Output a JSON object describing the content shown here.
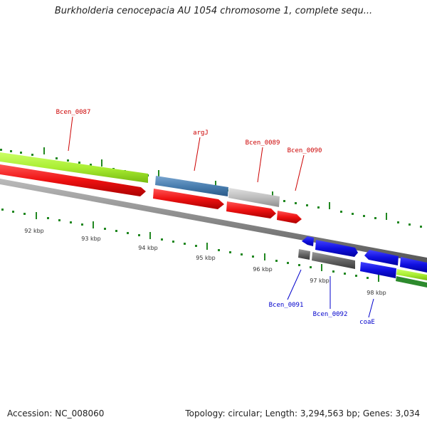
{
  "title": "Burkholderia cenocepacia AU 1054 chromosome 1, complete sequ...",
  "accession": "Accession: NC_008060",
  "topology": "Topology: circular; Length: 3,294,563 bp; Genes: 3,034",
  "colors": {
    "red_gene": "#ee1111",
    "blue_gene": "#1010e0",
    "lime_gene": "#aaee33",
    "steel_gene": "#4a7fb0",
    "gray_gene": "#bdbdbd",
    "dark_gene": "#666666",
    "axis": "#777777",
    "tick_green": "#228822",
    "label_red": "#cc0000",
    "label_blue": "#0000cc"
  },
  "kbp_labels": [
    "92 kbp",
    "93 kbp",
    "94 kbp",
    "95 kbp",
    "96 kbp",
    "97 kbp",
    "98 kbp"
  ],
  "gene_labels_top": [
    "Bcen_0087",
    "argJ",
    "Bcen_0089",
    "Bcen_0090"
  ],
  "gene_labels_bottom": [
    "Bcen_0091",
    "Bcen_0092",
    "coaE"
  ]
}
